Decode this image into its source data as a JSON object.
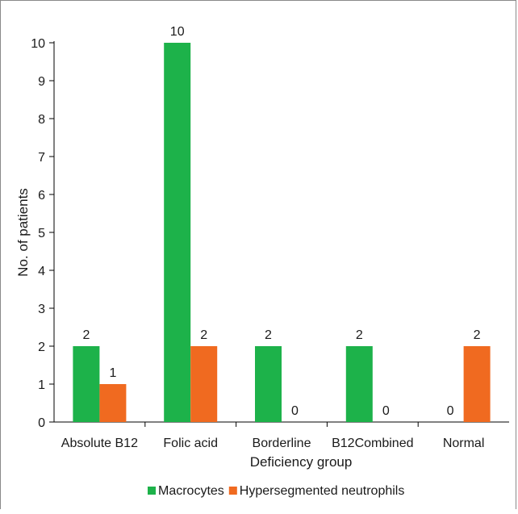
{
  "colors": {
    "macrocytes": "#1db24a",
    "hypersegmented": "#f06a20",
    "axis": "#000000",
    "frame": "#8a8a8a"
  },
  "chart_data": {
    "type": "bar",
    "title": "",
    "xlabel": "Deficiency group",
    "ylabel": "No. of patients",
    "ylim": [
      0,
      10
    ],
    "yticks": [
      0,
      1,
      2,
      3,
      4,
      5,
      6,
      7,
      8,
      9,
      10
    ],
    "categories": [
      "Absolute B12",
      "Folic acid",
      "Borderline",
      "B12Combined",
      "Normal"
    ],
    "series": [
      {
        "name": "Macrocytes",
        "color": "#1db24a",
        "values": [
          2,
          10,
          2,
          2,
          0
        ]
      },
      {
        "name": "Hypersegmented neutrophils",
        "color": "#f06a20",
        "values": [
          1,
          2,
          0,
          0,
          2
        ]
      }
    ],
    "data_labels": true,
    "grid": false,
    "legend_position": "bottom"
  }
}
